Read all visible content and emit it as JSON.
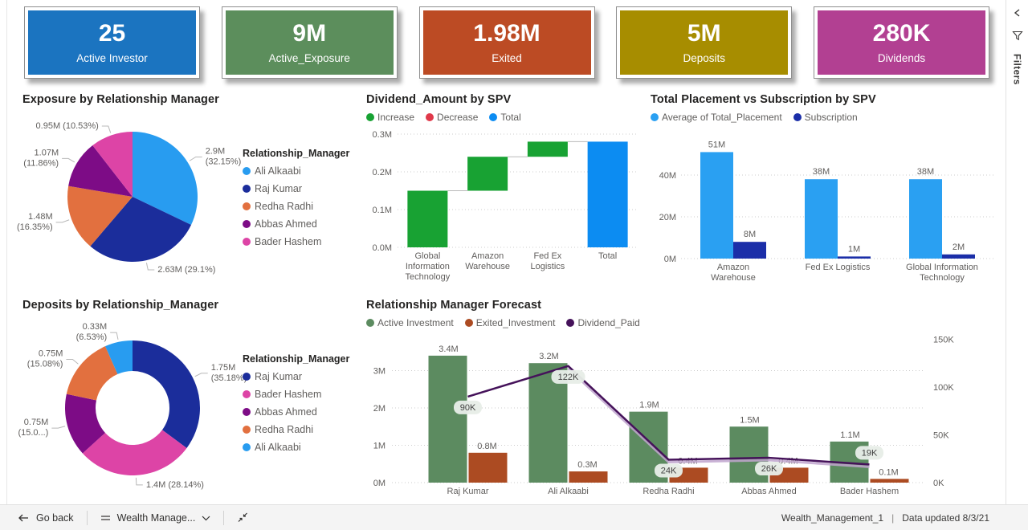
{
  "kpi_cards": [
    {
      "value": "25",
      "label": "Active Investor",
      "color": "#1B74C0"
    },
    {
      "value": "9M",
      "label": "Active_Exposure",
      "color": "#5C8E5C"
    },
    {
      "value": "1.98M",
      "label": "Exited",
      "color": "#BC4B24"
    },
    {
      "value": "5M",
      "label": "Deposits",
      "color": "#A78D00"
    },
    {
      "value": "280K",
      "label": "Dividends",
      "color": "#B24092"
    }
  ],
  "filters_panel": {
    "title": "Filters"
  },
  "bottom_bar": {
    "back_label": "Go back",
    "page_label": "Wealth Manage...",
    "status_report": "Wealth_Management_1",
    "status_divider": "|",
    "status_updated": "Data updated 8/3/21"
  },
  "chart_data": [
    {
      "id": "exposure-pie",
      "type": "pie",
      "title": "Exposure by Relationship Manager",
      "legend_title": "Relationship_Manager",
      "legend_position": "right",
      "series": [
        {
          "name": "Ali Alkaabi",
          "value": 2.9,
          "pct": 32.15,
          "color": "#289CF0",
          "label_lines": [
            "2.9M",
            "(32.15%)"
          ]
        },
        {
          "name": "Raj Kumar",
          "value": 2.63,
          "pct": 29.1,
          "color": "#1B2D9B",
          "label_lines": [
            "2.63M (29.1%)"
          ]
        },
        {
          "name": "Redha Radhi",
          "value": 1.48,
          "pct": 16.35,
          "color": "#E2703F",
          "label_lines": [
            "1.48M",
            "(16.35%)"
          ]
        },
        {
          "name": "Abbas Ahmed",
          "value": 1.07,
          "pct": 11.86,
          "color": "#7D0C86",
          "label_lines": [
            "1.07M",
            "(11.86%)"
          ]
        },
        {
          "name": "Bader Hashem",
          "value": 0.95,
          "pct": 10.53,
          "color": "#DD44A6",
          "label_lines": [
            "0.95M (10.53%)"
          ]
        }
      ]
    },
    {
      "id": "dividend-waterfall",
      "type": "waterfall",
      "title": "Dividend_Amount by SPV",
      "legend": [
        {
          "name": "Increase",
          "color": "#18A233"
        },
        {
          "name": "Decrease",
          "color": "#E0394A"
        },
        {
          "name": "Total",
          "color": "#0C8CF2"
        }
      ],
      "steps": [
        {
          "category_lines": [
            "Global",
            "Information",
            "Technology"
          ],
          "value": 0.15,
          "kind": "increase"
        },
        {
          "category_lines": [
            "Amazon",
            "Warehouse"
          ],
          "value": 0.09,
          "kind": "increase"
        },
        {
          "category_lines": [
            "Fed Ex",
            "Logistics"
          ],
          "value": 0.04,
          "kind": "increase"
        },
        {
          "category_lines": [
            "Total"
          ],
          "value": 0.28,
          "kind": "total"
        }
      ],
      "y_ticks": [
        {
          "v": 0,
          "label": "0.0M"
        },
        {
          "v": 0.1,
          "label": "0.1M"
        },
        {
          "v": 0.2,
          "label": "0.2M"
        },
        {
          "v": 0.3,
          "label": "0.3M"
        }
      ],
      "y_max": 0.3,
      "grid": true
    },
    {
      "id": "placement-bar",
      "type": "bar",
      "title": "Total Placement vs Subscription by SPV",
      "legend": [
        {
          "name": "Average of Total_Placement",
          "color": "#2AA0F2"
        },
        {
          "name": "Subscription",
          "color": "#1B2EA8"
        }
      ],
      "categories": [
        [
          "Amazon",
          "Warehouse"
        ],
        [
          "Fed Ex Logistics"
        ],
        [
          "Global Information",
          "Technology"
        ]
      ],
      "series": [
        {
          "name": "Average of Total_Placement",
          "color": "#2AA0F2",
          "values": [
            51,
            38,
            38
          ],
          "labels": [
            "51M",
            "38M",
            "38M"
          ]
        },
        {
          "name": "Subscription",
          "color": "#1B2EA8",
          "values": [
            8,
            1,
            2
          ],
          "labels": [
            "8M",
            "1M",
            "2M"
          ]
        }
      ],
      "y_ticks": [
        {
          "v": 0,
          "label": "0M"
        },
        {
          "v": 20,
          "label": "20M"
        },
        {
          "v": 40,
          "label": "40M"
        }
      ],
      "y_max": 55,
      "grid": true
    },
    {
      "id": "deposits-donut",
      "type": "donut",
      "title": "Deposits by Relationship_Manager",
      "legend_title": "Relationship_Manager",
      "legend_position": "right",
      "series": [
        {
          "name": "Raj Kumar",
          "value": 1.75,
          "pct": 35.18,
          "color": "#1B2D9B",
          "label_lines": [
            "1.75M",
            "(35.18%)"
          ]
        },
        {
          "name": "Bader Hashem",
          "value": 1.4,
          "pct": 28.14,
          "color": "#DD44A6",
          "label_lines": [
            "1.4M (28.14%)"
          ]
        },
        {
          "name": "Abbas Ahmed",
          "value": 0.75,
          "pct": 15.04,
          "color": "#7D0C86",
          "label_lines": [
            "0.75M",
            "(15.0...)"
          ]
        },
        {
          "name": "Redha Radhi",
          "value": 0.75,
          "pct": 15.08,
          "color": "#E2703F",
          "label_lines": [
            "0.75M",
            "(15.08%)"
          ]
        },
        {
          "name": "Ali Alkaabi",
          "value": 0.33,
          "pct": 6.53,
          "color": "#289CF0",
          "label_lines": [
            "0.33M",
            "(6.53%)"
          ]
        }
      ]
    },
    {
      "id": "rm-forecast",
      "type": "combo",
      "title": "Relationship Manager Forecast",
      "legend": [
        {
          "name": "Active Investment",
          "color": "#5C8B60"
        },
        {
          "name": "Exited_Investment",
          "color": "#AC4B22"
        },
        {
          "name": "Dividend_Paid",
          "color": "#45125A"
        }
      ],
      "categories": [
        "Raj Kumar",
        "Ali Alkaabi",
        "Redha Radhi",
        "Abbas Ahmed",
        "Bader Hashem"
      ],
      "bar_series": [
        {
          "name": "Active Investment",
          "color": "#5C8B60",
          "values": [
            3.4,
            3.2,
            1.9,
            1.5,
            1.1
          ],
          "labels": [
            "3.4M",
            "3.2M",
            "1.9M",
            "1.5M",
            "1.1M"
          ]
        },
        {
          "name": "Exited_Investment",
          "color": "#AC4B22",
          "values": [
            0.8,
            0.3,
            0.4,
            0.4,
            0.1
          ],
          "labels": [
            "0.8M",
            "0.3M",
            "0.4M",
            "0.4M",
            "0.1M"
          ]
        }
      ],
      "line_series": {
        "name": "Dividend_Paid",
        "color": "#45125A",
        "values": [
          90,
          122,
          24,
          26,
          19
        ],
        "labels": [
          "90K",
          "122K",
          "24K",
          "26K",
          "19K"
        ]
      },
      "left_ticks": [
        {
          "v": 0,
          "label": "0M"
        },
        {
          "v": 1,
          "label": "1M"
        },
        {
          "v": 2,
          "label": "2M"
        },
        {
          "v": 3,
          "label": "3M"
        }
      ],
      "right_ticks": [
        {
          "v": 0,
          "label": "0K"
        },
        {
          "v": 50,
          "label": "50K"
        },
        {
          "v": 100,
          "label": "100K"
        },
        {
          "v": 150,
          "label": "150K"
        }
      ],
      "left_axis_max": 3.9,
      "right_axis_max": 155,
      "grid": true
    }
  ]
}
